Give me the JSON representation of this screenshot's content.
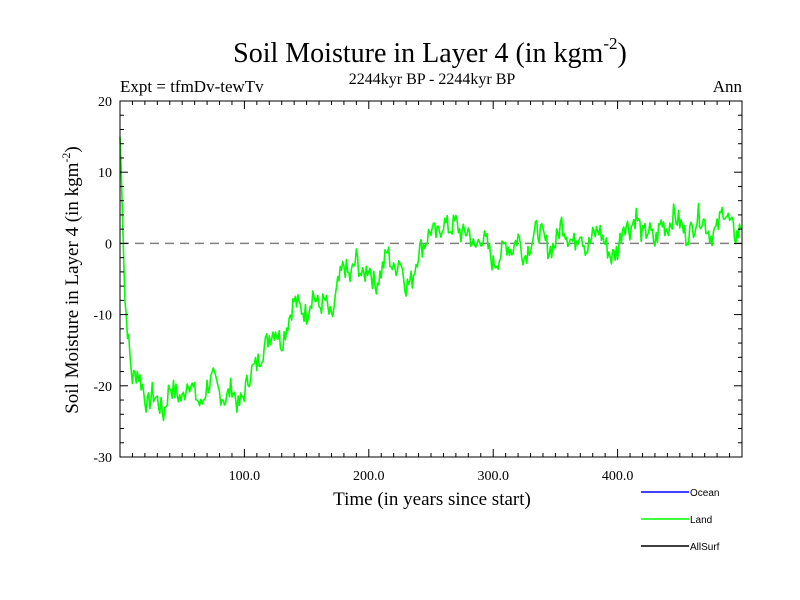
{
  "chart_data": {
    "type": "line",
    "title": "Soil Moisture in Layer 4 (in kgm",
    "title_sup": "-2",
    "title_close": ")",
    "subtitle": "2244kyr BP - 2244kyr BP",
    "expt_label": "Expt = tfmDv-tewTv",
    "season_label": "Ann",
    "xlabel": "Time (in years since start)",
    "ylabel": "Soil Moisture in Layer 4 (in kgm",
    "ylabel_sup": "-2",
    "ylabel_close": ")",
    "xlim": [
      0,
      500
    ],
    "ylim": [
      -30,
      20
    ],
    "x_ticks": [
      {
        "value": 100,
        "label": "100.0"
      },
      {
        "value": 200,
        "label": "200.0"
      },
      {
        "value": 300,
        "label": "300.0"
      },
      {
        "value": 400,
        "label": "400.0"
      }
    ],
    "y_ticks": [
      {
        "value": 20,
        "label": "20"
      },
      {
        "value": 10,
        "label": "10"
      },
      {
        "value": 0,
        "label": "0"
      },
      {
        "value": -10,
        "label": "-10"
      },
      {
        "value": -20,
        "label": "-20"
      },
      {
        "value": -30,
        "label": "-30"
      }
    ],
    "zero_line": {
      "value": 0,
      "style": "dashed",
      "color": "#808080"
    },
    "legend": [
      {
        "name": "Ocean",
        "color": "#0000ff"
      },
      {
        "name": "Land",
        "color": "#00ff00"
      },
      {
        "name": "AllSurf",
        "color": "#000000"
      }
    ],
    "series": [
      {
        "name": "Land",
        "color": "#00ff00",
        "x": [
          0,
          2,
          4,
          6,
          8,
          10,
          14,
          18,
          22,
          26,
          30,
          35,
          40,
          45,
          50,
          55,
          60,
          65,
          70,
          75,
          80,
          85,
          90,
          95,
          100,
          105,
          110,
          115,
          120,
          125,
          130,
          135,
          140,
          145,
          150,
          155,
          160,
          165,
          170,
          175,
          180,
          185,
          190,
          195,
          200,
          205,
          210,
          215,
          220,
          225,
          230,
          235,
          240,
          245,
          250,
          255,
          260,
          265,
          270,
          275,
          280,
          285,
          290,
          295,
          300,
          305,
          310,
          315,
          320,
          325,
          330,
          335,
          340,
          345,
          350,
          355,
          360,
          365,
          370,
          375,
          380,
          385,
          390,
          395,
          400,
          405,
          410,
          415,
          420,
          425,
          430,
          435,
          440,
          445,
          450,
          455,
          460,
          465,
          470,
          475,
          480,
          485,
          490,
          495,
          499
        ],
        "y": [
          15,
          5,
          -8,
          -12,
          -16,
          -19,
          -18,
          -20,
          -23,
          -21,
          -22,
          -24,
          -20,
          -21,
          -22,
          -19,
          -21,
          -23,
          -20,
          -19,
          -21,
          -22,
          -20,
          -23,
          -21,
          -18,
          -17,
          -15,
          -13,
          -12,
          -14,
          -11,
          -8,
          -9,
          -10,
          -7,
          -9,
          -8,
          -11,
          -6,
          -3,
          -5,
          -2,
          -5,
          -3,
          -6,
          -4,
          -1,
          -4,
          -2,
          -6,
          -5,
          -1,
          0,
          2,
          1,
          3,
          2,
          3,
          1,
          2,
          -1,
          1,
          0,
          -3,
          -2,
          0,
          -1,
          1,
          -2,
          0,
          2,
          1,
          -1,
          0,
          3,
          1,
          0,
          2,
          -1,
          1,
          2,
          0,
          -2,
          -1,
          3,
          2,
          4,
          1,
          2,
          0,
          3,
          2,
          4,
          3,
          1,
          2,
          4,
          3,
          1,
          2,
          5,
          3,
          1,
          2
        ]
      }
    ]
  }
}
